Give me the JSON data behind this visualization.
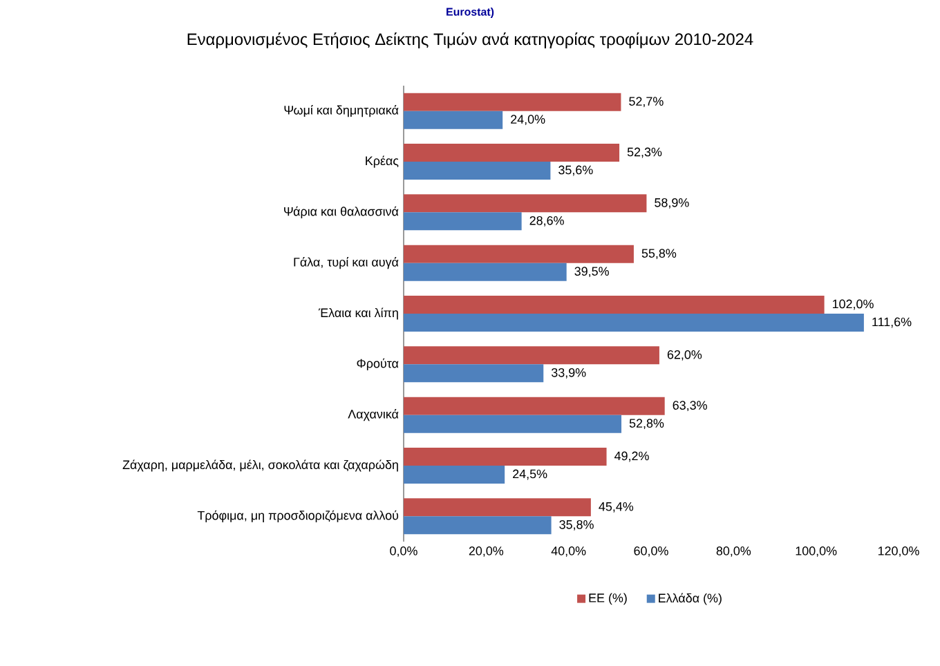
{
  "chart_data": {
    "type": "bar",
    "orientation": "horizontal",
    "title": "Εναρμονισμένος Ετήσιος Δείκτης Τιμών ανά κατηγορίας τροφίμων 2010-2024",
    "annotations": [
      "Eurostat)"
    ],
    "categories": [
      "Ψωμί και δημητριακά",
      "Κρέας",
      "Ψάρια και θαλασσινά",
      "Γάλα, τυρί και αυγά",
      "Έλαια και λίπη",
      "Φρούτα",
      "Λαχανικά",
      "Ζάχαρη, μαρμελάδα, μέλι, σοκολάτα και ζαχαρώδη",
      "Τρόφιμα, μη προσδιοριζόμενα αλλού"
    ],
    "series": [
      {
        "name": "ΕΕ (%)",
        "color": "#c0504d",
        "values": [
          52.7,
          52.3,
          58.9,
          55.8,
          102.0,
          62.0,
          63.3,
          49.2,
          45.4
        ],
        "value_labels": [
          "52,7%",
          "52,3%",
          "58,9%",
          "55,8%",
          "102,0%",
          "62,0%",
          "63,3%",
          "49,2%",
          "45,4%"
        ]
      },
      {
        "name": "Ελλάδα (%)",
        "color": "#4f81bd",
        "values": [
          24.0,
          35.6,
          28.6,
          39.5,
          111.6,
          33.9,
          52.8,
          24.5,
          35.8
        ],
        "value_labels": [
          "24,0%",
          "35,6%",
          "28,6%",
          "39,5%",
          "111,6%",
          "33,9%",
          "52,8%",
          "24,5%",
          "35,8%"
        ]
      }
    ],
    "xlim": [
      0,
      120
    ],
    "xticks": [
      {
        "value": 0,
        "label": "0,0%"
      },
      {
        "value": 20,
        "label": "20,0%"
      },
      {
        "value": 40,
        "label": "40,0%"
      },
      {
        "value": 60,
        "label": "60,0%"
      },
      {
        "value": 80,
        "label": "80,0%"
      },
      {
        "value": 100,
        "label": "100,0%"
      },
      {
        "value": 120,
        "label": "120,0%"
      }
    ],
    "legend": "bottom",
    "grid": false
  }
}
